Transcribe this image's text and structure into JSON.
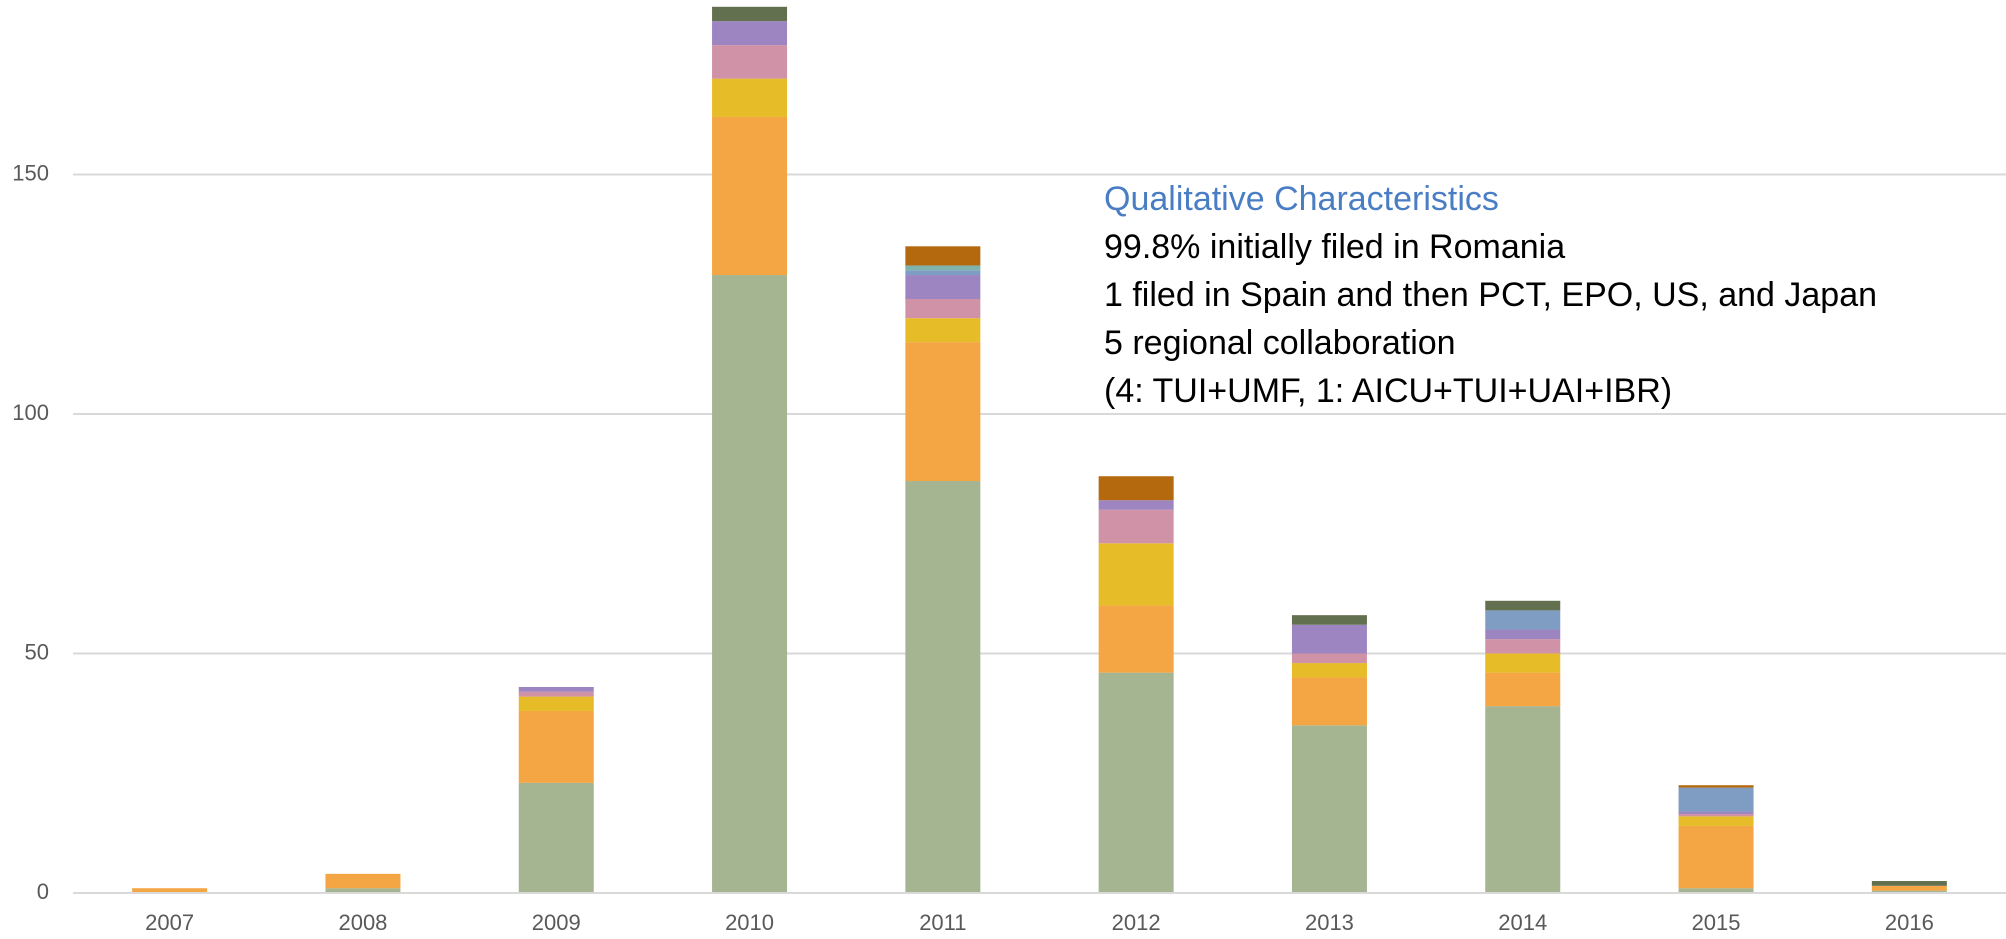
{
  "chart_data": {
    "type": "stacked_bar",
    "categories": [
      "2007",
      "2008",
      "2009",
      "2010",
      "2011",
      "2012",
      "2013",
      "2014",
      "2015",
      "2016"
    ],
    "series": [
      {
        "color": "#a5b592",
        "values": [
          0,
          1,
          23,
          129,
          86,
          46,
          35,
          39,
          1,
          0.5
        ]
      },
      {
        "color": "#f4a645",
        "values": [
          1,
          3,
          15,
          33,
          29,
          14,
          10,
          7,
          13,
          1
        ]
      },
      {
        "color": "#e7bc29",
        "values": [
          0,
          0,
          3,
          8,
          5,
          13,
          3,
          4,
          2,
          0
        ]
      },
      {
        "color": "#d092a7",
        "values": [
          0,
          0,
          1,
          7,
          4,
          7,
          2,
          3,
          0.5,
          0
        ]
      },
      {
        "color": "#9c85c0",
        "values": [
          0,
          0,
          1,
          5,
          5,
          2,
          6,
          2,
          0.5,
          0
        ]
      },
      {
        "color": "#7f9dc2",
        "values": [
          0,
          0,
          0,
          0,
          1,
          0,
          0,
          4,
          5,
          0
        ]
      },
      {
        "color": "#7fb3ad",
        "values": [
          0,
          0,
          0,
          0,
          1,
          0,
          0,
          0,
          0,
          0
        ]
      },
      {
        "color": "#b4690e",
        "values": [
          0,
          0,
          0,
          0,
          4,
          5,
          0,
          0,
          0.5,
          0
        ]
      },
      {
        "color": "#637050",
        "values": [
          0,
          0,
          0,
          3,
          0,
          0,
          2,
          2,
          0,
          1
        ]
      }
    ],
    "ylim": [
      0,
      186
    ],
    "yticks": [
      0,
      50,
      100,
      150
    ],
    "grid": true,
    "annotation": {
      "title": "Qualitative Characteristics",
      "lines": [
        "99.8% initially filed in Romania",
        "1 filed in Spain and then PCT, EPO, US, and Japan",
        "5 regional collaboration",
        "(4: TUI+UMF, 1: AICU+TUI+UAI+IBR)"
      ]
    }
  }
}
